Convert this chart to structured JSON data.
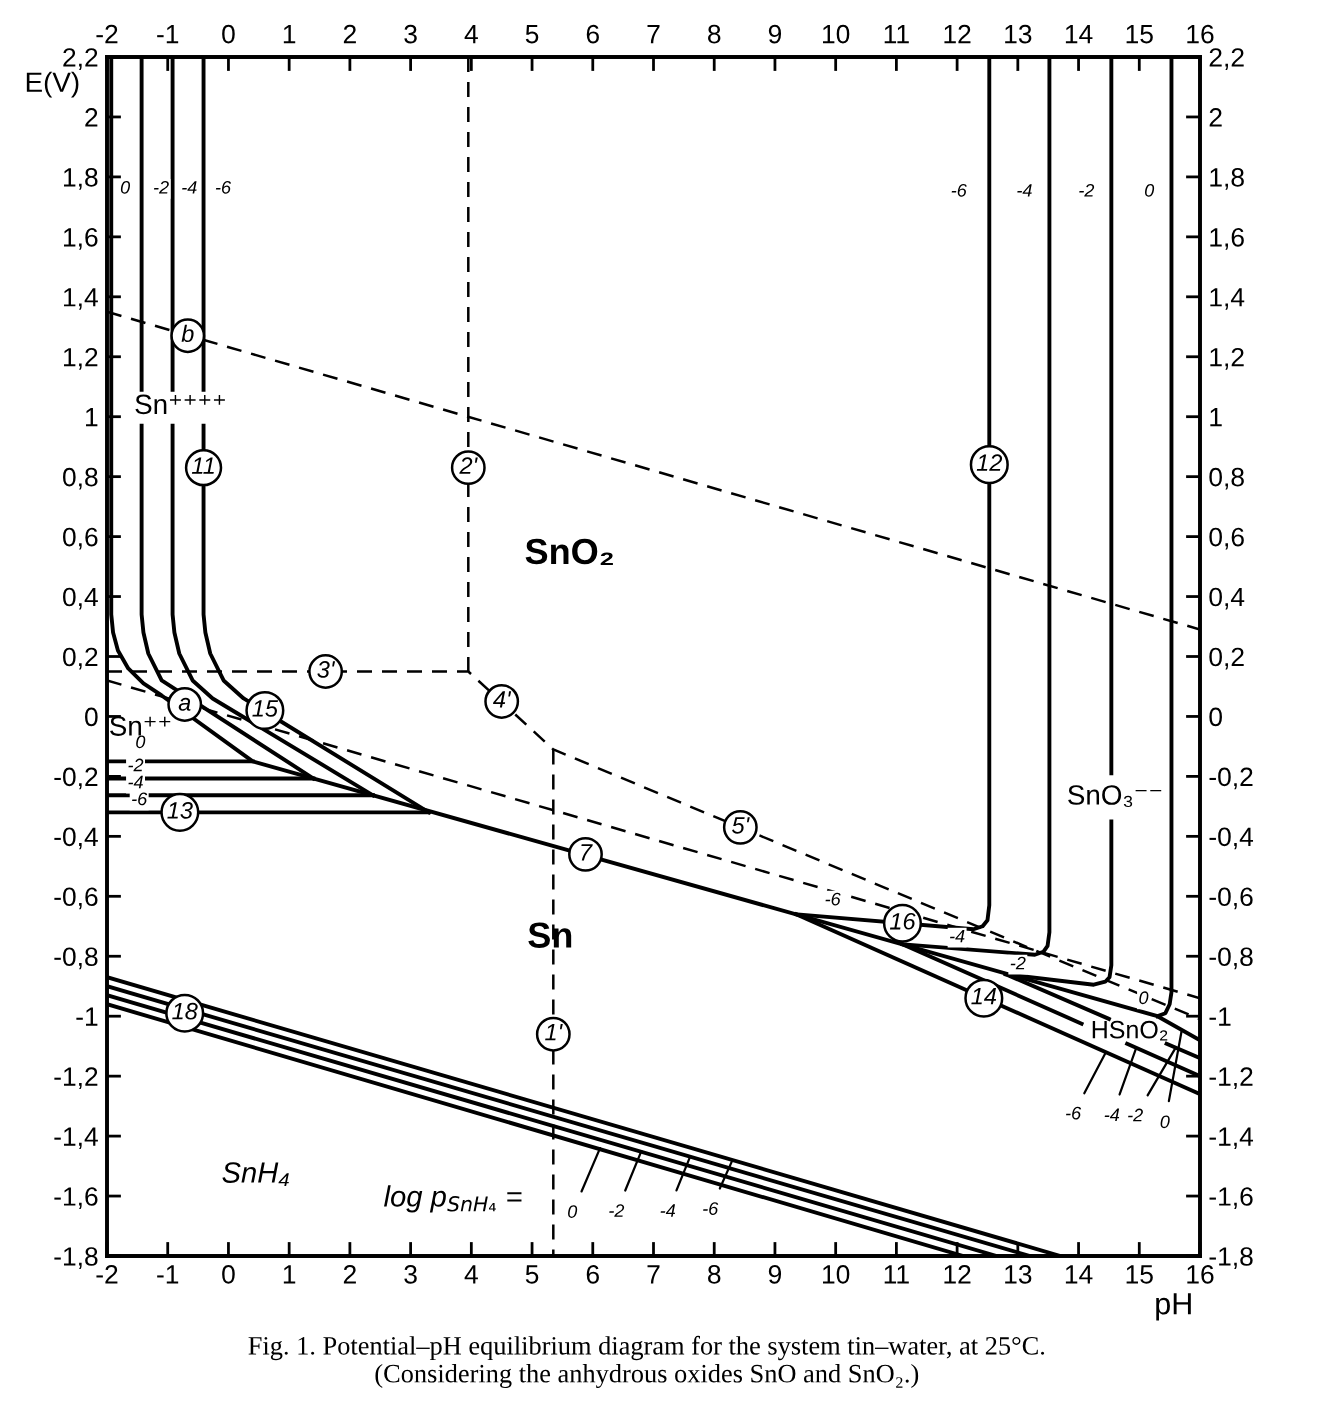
{
  "chart_data": {
    "type": "line",
    "xlabel": "pH",
    "ylabel": "E(V)",
    "xlim": [
      -2,
      16
    ],
    "ylim": [
      -1.8,
      2.2
    ],
    "x2lim": [
      -2,
      16
    ],
    "y2lim": [
      -1.8,
      2.2
    ],
    "xticks": [
      -2,
      -1,
      0,
      1,
      2,
      3,
      4,
      5,
      6,
      7,
      8,
      9,
      10,
      11,
      12,
      13,
      14,
      15,
      16
    ],
    "x2ticks": [
      -2,
      -1,
      0,
      1,
      2,
      3,
      4,
      5,
      6,
      7,
      8,
      9,
      10,
      11,
      12,
      13,
      14,
      15,
      16
    ],
    "yticks": [
      {
        "value": -1.8,
        "label": "-1,8"
      },
      {
        "value": -1.6,
        "label": "-1,6"
      },
      {
        "value": -1.4,
        "label": "-1,4"
      },
      {
        "value": -1.2,
        "label": "-1,2"
      },
      -1,
      {
        "value": -0.8,
        "label": "-0,8"
      },
      {
        "value": -0.6,
        "label": "-0,6"
      },
      {
        "value": -0.4,
        "label": "-0,4"
      },
      {
        "value": -0.2,
        "label": "-0,2"
      },
      0,
      {
        "value": 0.2,
        "label": "0,2"
      },
      {
        "value": 0.4,
        "label": "0,4"
      },
      {
        "value": 0.6,
        "label": "0,6"
      },
      {
        "value": 0.8,
        "label": "0,8"
      },
      1,
      {
        "value": 1.2,
        "label": "1,2"
      },
      {
        "value": 1.4,
        "label": "1,4"
      },
      {
        "value": 1.6,
        "label": "1,6"
      },
      {
        "value": 1.8,
        "label": "1,8"
      },
      2,
      {
        "value": 2.2,
        "label": "2,2"
      }
    ],
    "y2ticks": [
      {
        "value": -1.8,
        "label": "-1,8"
      },
      {
        "value": -1.6,
        "label": "-1,6"
      },
      {
        "value": -1.4,
        "label": "-1,4"
      },
      {
        "value": -1.2,
        "label": "-1,2"
      },
      -1,
      {
        "value": -0.8,
        "label": "-0,8"
      },
      {
        "value": -0.6,
        "label": "-0,6"
      },
      {
        "value": -0.4,
        "label": "-0,4"
      },
      {
        "value": -0.2,
        "label": "-0,2"
      },
      0,
      {
        "value": 0.2,
        "label": "0,2"
      },
      {
        "value": 0.4,
        "label": "0,4"
      },
      {
        "value": 0.6,
        "label": "0,6"
      },
      {
        "value": 0.8,
        "label": "0,8"
      },
      1,
      {
        "value": 1.2,
        "label": "1,2"
      },
      {
        "value": 1.4,
        "label": "1,4"
      },
      {
        "value": 1.6,
        "label": "1,6"
      },
      {
        "value": 1.8,
        "label": "1,8"
      },
      2,
      {
        "value": 2.2,
        "label": "2,2"
      }
    ],
    "series": [
      {
        "x": [
          -1.93,
          -1.93,
          -1.9,
          -1.82,
          -1.65,
          -1.4,
          -1.1,
          0.4,
          15.3,
          16
        ],
        "values": [
          2.2,
          0.34,
          0.28,
          0.22,
          0.16,
          0.11,
          0.07,
          -0.15,
          -1.0,
          -1.08
        ],
        "color": "#000000"
      },
      {
        "x": [
          -1.43,
          -1.43,
          null,
          -1.43,
          -1.43,
          -1.4,
          -1.32,
          -1.1,
          1.4
        ],
        "values": [
          2.2,
          1.09,
          null,
          0.97,
          0.34,
          0.28,
          0.21,
          0.12,
          -0.207
        ],
        "color": "#000000"
      },
      {
        "x": [
          -0.92,
          -0.92,
          null,
          -0.92,
          -0.92,
          -0.89,
          -0.81,
          -0.59,
          -0.26,
          2.38
        ],
        "values": [
          2.2,
          1.09,
          null,
          0.97,
          0.34,
          0.28,
          0.21,
          0.12,
          0.06,
          -0.263
        ],
        "color": "#000000"
      },
      {
        "x": [
          -0.41,
          -0.41,
          null,
          -0.41,
          -0.41,
          -0.38,
          -0.3,
          -0.08,
          0.25,
          3.3
        ],
        "values": [
          2.2,
          1.09,
          null,
          0.97,
          0.34,
          0.28,
          0.21,
          0.12,
          0.06,
          -0.32
        ],
        "color": "#000000"
      },
      {
        "x": [
          -2,
          0.4
        ],
        "values": [
          -0.15,
          -0.15
        ],
        "color": "#000000"
      },
      {
        "x": [
          -2,
          1.4
        ],
        "values": [
          -0.207,
          -0.207
        ],
        "color": "#000000"
      },
      {
        "x": [
          -2,
          2.38
        ],
        "values": [
          -0.263,
          -0.263
        ],
        "color": "#000000"
      },
      {
        "x": [
          -2,
          3.3
        ],
        "values": [
          -0.32,
          -0.32
        ],
        "color": "#000000"
      },
      {
        "x": [
          12.53,
          12.53,
          12.5,
          12.42,
          12.27,
          9.35
        ],
        "values": [
          2.2,
          -0.63,
          -0.68,
          -0.7,
          -0.71,
          -0.66
        ],
        "color": "#000000"
      },
      {
        "x": [
          13.52,
          13.52,
          13.49,
          13.42,
          13.28,
          11.1
        ],
        "values": [
          2.2,
          -0.72,
          -0.765,
          -0.785,
          -0.795,
          -0.76
        ],
        "color": "#000000"
      },
      {
        "x": [
          14.54,
          14.54,
          null,
          14.54,
          14.54,
          14.51,
          14.44,
          14.25,
          12.8
        ],
        "values": [
          2.2,
          -0.19,
          null,
          -0.35,
          -0.83,
          -0.87,
          -0.885,
          -0.895,
          -0.86
        ],
        "color": "#000000"
      },
      {
        "x": [
          15.53,
          15.53,
          15.5,
          15.43,
          15.3
        ],
        "values": [
          2.2,
          -0.92,
          -0.96,
          -0.99,
          -1.0
        ],
        "color": "#000000"
      },
      {
        "x": [
          9.35,
          16
        ],
        "values": [
          -0.66,
          -1.26
        ],
        "color": "#000000"
      },
      {
        "x": [
          11.1,
          14.05,
          null,
          14.8,
          16
        ],
        "values": [
          -0.76,
          -1.025,
          null,
          -1.092,
          -1.2
        ],
        "color": "#000000"
      },
      {
        "x": [
          12.8,
          14.5,
          null,
          15.45,
          16
        ],
        "values": [
          -0.86,
          -1.009,
          null,
          -1.092,
          -1.14
        ],
        "color": "#000000"
      },
      {
        "x": [
          -2,
          13.7
        ],
        "values": [
          -0.87,
          -1.8
        ],
        "color": "#000000"
      },
      {
        "x": [
          -2,
          13.2
        ],
        "values": [
          -0.9,
          -1.8
        ],
        "color": "#000000"
      },
      {
        "x": [
          -2,
          12.65
        ],
        "values": [
          -0.93,
          -1.8
        ],
        "color": "#000000"
      },
      {
        "x": [
          -2,
          12.1
        ],
        "values": [
          -0.96,
          -1.8
        ],
        "color": "#000000"
      },
      {
        "x": [
          -2,
          16
        ],
        "values": [
          1.35,
          0.29
        ],
        "color": "#000000",
        "line_style": "dashed"
      },
      {
        "x": [
          -2,
          16
        ],
        "values": [
          0.12,
          -0.94
        ],
        "color": "#000000",
        "line_style": "dashed"
      },
      {
        "x": [
          -2,
          3.95,
          5.35,
          16
        ],
        "values": [
          0.15,
          0.15,
          -0.11,
          -1.01
        ],
        "color": "#000000",
        "line_style": "dashed"
      },
      {
        "x": [
          3.95,
          3.95
        ],
        "values": [
          2.2,
          0.15
        ],
        "color": "#000000",
        "line_style": "dashed"
      },
      {
        "x": [
          5.35,
          5.35
        ],
        "values": [
          -0.11,
          -1.8
        ],
        "color": "#000000",
        "line_style": "dashed"
      }
    ],
    "annotations": [
      {
        "text": "b",
        "x": -0.67,
        "y": 1.27
      },
      {
        "text": "11",
        "x": -0.41,
        "y": 0.83
      },
      {
        "text": "2'",
        "x": 3.95,
        "y": 0.83
      },
      {
        "text": "12",
        "x": 12.53,
        "y": 0.84
      },
      {
        "text": "3'",
        "x": 1.6,
        "y": 0.15
      },
      {
        "text": "a",
        "x": -0.72,
        "y": 0.04
      },
      {
        "text": "15",
        "x": 0.6,
        "y": 0.02
      },
      {
        "text": "4'",
        "x": 4.5,
        "y": 0.05
      },
      {
        "text": "13",
        "x": -0.8,
        "y": -0.32
      },
      {
        "text": "7",
        "x": 5.88,
        "y": -0.46
      },
      {
        "text": "5'",
        "x": 8.43,
        "y": -0.37
      },
      {
        "text": "16",
        "x": 11.1,
        "y": -0.69
      },
      {
        "text": "14",
        "x": 12.44,
        "y": -0.94
      },
      {
        "text": "1'",
        "x": 5.35,
        "y": -1.06
      },
      {
        "text": "18",
        "x": -0.72,
        "y": -0.99
      },
      {
        "text": "0",
        "x": -1.93,
        "y": 1.76
      },
      {
        "text": "-2",
        "x": -1.43,
        "y": 1.76
      },
      {
        "text": "-4",
        "x": -0.92,
        "y": 1.76
      },
      {
        "text": "-6",
        "x": -0.41,
        "y": 1.76
      },
      {
        "text": "-6",
        "x": 12.53,
        "y": 1.75
      },
      {
        "text": "-4",
        "x": 13.52,
        "y": 1.75
      },
      {
        "text": "-2",
        "x": 14.54,
        "y": 1.75
      },
      {
        "text": "0",
        "x": 15.53,
        "y": 1.75
      },
      {
        "text": "0",
        "x": -1.45,
        "y": -0.15
      },
      {
        "text": "-2",
        "x": -1.53,
        "y": -0.207
      },
      {
        "text": "-4",
        "x": -1.53,
        "y": -0.263
      },
      {
        "text": "-6",
        "x": -1.47,
        "y": -0.32
      },
      {
        "text": "-6",
        "x": 9.95,
        "y": -0.67
      },
      {
        "text": "-4",
        "x": 12.0,
        "y": -0.775
      },
      {
        "text": "-2",
        "x": 13.0,
        "y": -0.865
      },
      {
        "text": "0",
        "x": 15.07,
        "y": -0.99
      },
      {
        "text": "-6",
        "x": 14.45,
        "y": -1.12
      },
      {
        "text": "-4",
        "x": 14.95,
        "y": -1.106
      },
      {
        "text": "-2",
        "x": 15.6,
        "y": -1.105
      },
      {
        "text": "0",
        "x": 15.7,
        "y": -1.046
      },
      {
        "text": "0",
        "x": 6.12,
        "y": -1.44
      },
      {
        "text": "-2",
        "x": 6.8,
        "y": -1.45
      },
      {
        "text": "-4",
        "x": 7.6,
        "y": -1.47
      },
      {
        "text": "-6",
        "x": 8.3,
        "y": -1.48
      },
      "Sn⁺⁺⁺⁺",
      "Sn⁺⁺",
      "SnO₂",
      "Sn",
      "SnO₃⁻⁻",
      "HSnO₂",
      "SnH₄",
      "log p$_{SnH₄}$ =",
      "Fig. 1. Potential–pH equilibrium diagram for the system tin–water, at 25°C.",
      "(Considering the anhydrous oxides SnO and SnO₂.)"
    ]
  }
}
